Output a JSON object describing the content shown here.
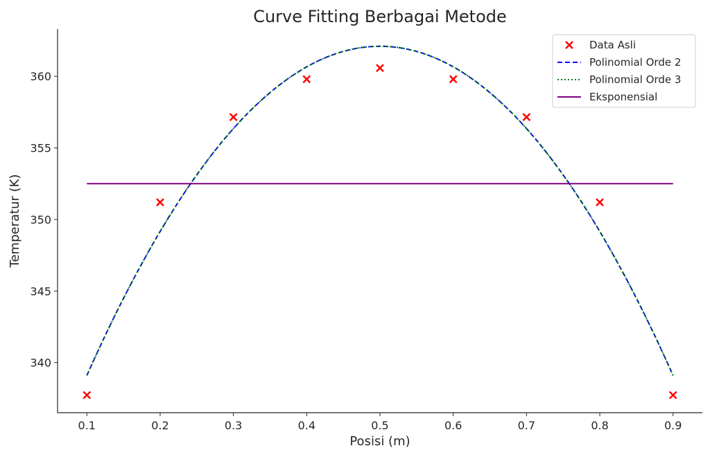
{
  "chart_data": {
    "type": "line",
    "title": "Curve Fitting Berbagai Metode",
    "xlabel": "Posisi (m)",
    "ylabel": "Temperatur (K)",
    "xlim": [
      0.06,
      0.94
    ],
    "ylim": [
      336.5,
      363.3
    ],
    "xticks": [
      0.1,
      0.2,
      0.3,
      0.4,
      0.5,
      0.6,
      0.7,
      0.8,
      0.9
    ],
    "xtick_labels": [
      "0.1",
      "0.2",
      "0.3",
      "0.4",
      "0.5",
      "0.6",
      "0.7",
      "0.8",
      "0.9"
    ],
    "yticks": [
      340,
      345,
      350,
      355,
      360
    ],
    "ytick_labels": [
      "340",
      "345",
      "350",
      "355",
      "360"
    ],
    "grid": false,
    "legend_position": "top-right",
    "data": {
      "name": "Data Asli",
      "color": "#ff0000",
      "x": [
        0.1,
        0.2,
        0.3,
        0.4,
        0.5,
        0.6,
        0.7,
        0.8,
        0.9
      ],
      "y": [
        337.73,
        351.2,
        357.15,
        359.8,
        360.58,
        359.8,
        357.15,
        351.2,
        337.73
      ]
    },
    "series": [
      {
        "name": "Polinomial Orde 2",
        "color": "#0000ff",
        "style": "dashed",
        "model": "quadratic",
        "peak_x": 0.5,
        "peak_y": 362.1,
        "a": -143.75,
        "x_range": [
          0.1,
          0.9
        ]
      },
      {
        "name": "Polinomial Orde 3",
        "color": "#008000",
        "style": "dotted",
        "model": "quadratic",
        "peak_x": 0.5,
        "peak_y": 362.1,
        "a": -143.75,
        "x_range": [
          0.1,
          0.9
        ]
      },
      {
        "name": "Eksponensial",
        "color": "#800080",
        "style": "solid",
        "model": "constant",
        "value": 352.5,
        "x_range": [
          0.1,
          0.9
        ]
      }
    ]
  }
}
